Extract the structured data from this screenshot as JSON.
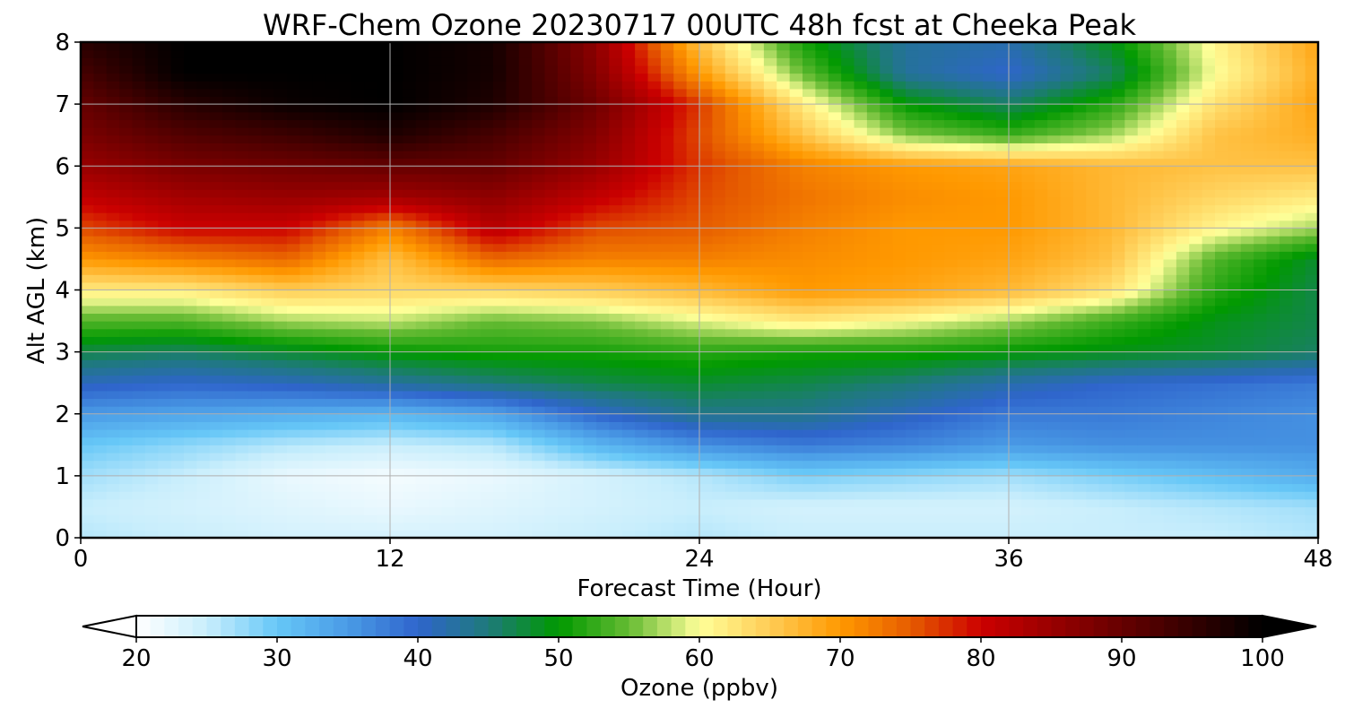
{
  "chart_data": {
    "type": "heatmap",
    "title": "WRF-Chem Ozone  20230717 00UTC 48h fcst at Cheeka Peak",
    "xlabel": "Forecast Time (Hour)",
    "ylabel": "Alt AGL (km)",
    "xlim": [
      0,
      48
    ],
    "ylim": [
      0,
      8
    ],
    "xticks": [
      0,
      12,
      24,
      36,
      48
    ],
    "yticks": [
      0,
      1,
      2,
      3,
      4,
      5,
      6,
      7,
      8
    ],
    "grid": true,
    "colorbar": {
      "label": "Ozone  (ppbv)",
      "min": 20,
      "max": 100,
      "ticks": [
        20,
        30,
        40,
        50,
        60,
        70,
        80,
        90,
        100
      ],
      "extend": "both",
      "colors": {
        "20": "#ffffff",
        "25": "#c9eefc",
        "30": "#66c7f7",
        "35": "#4a9be6",
        "40": "#2f65cc",
        "45": "#1e7a7a",
        "50": "#009900",
        "55": "#66bb33",
        "60": "#ffff99",
        "65": "#ffcc55",
        "70": "#ff9900",
        "75": "#e65c00",
        "80": "#cc0000",
        "90": "#660000",
        "100": "#000000"
      }
    },
    "x": [
      0,
      4,
      8,
      12,
      16,
      20,
      24,
      28,
      32,
      36,
      40,
      44,
      48
    ],
    "y": [
      0,
      0.5,
      1,
      1.5,
      2,
      2.5,
      3,
      3.5,
      4,
      4.5,
      5,
      5.5,
      6,
      6.5,
      7,
      7.5,
      8
    ],
    "z": [
      [
        26,
        25,
        24,
        24,
        24,
        25,
        26,
        25,
        25,
        25,
        25,
        25,
        26
      ],
      [
        25,
        24,
        23,
        22,
        23,
        24,
        25,
        24,
        24,
        24,
        25,
        26,
        27
      ],
      [
        27,
        25,
        22,
        21,
        22,
        24,
        26,
        29,
        28,
        27,
        29,
        31,
        33
      ],
      [
        30,
        28,
        26,
        25,
        26,
        32,
        36,
        38,
        37,
        35,
        36,
        36,
        36
      ],
      [
        35,
        34,
        33,
        32,
        34,
        40,
        44,
        44,
        41,
        38,
        38,
        37,
        36
      ],
      [
        41,
        40,
        41,
        43,
        45,
        47,
        48,
        47,
        45,
        42,
        40,
        39,
        38
      ],
      [
        47,
        46,
        48,
        50,
        51,
        51,
        52,
        51,
        51,
        50,
        49,
        48,
        46
      ],
      [
        54,
        54,
        57,
        58,
        55,
        56,
        59,
        62,
        60,
        57,
        53,
        49,
        47
      ],
      [
        62,
        62,
        65,
        64,
        64,
        65,
        67,
        70,
        69,
        67,
        63,
        52,
        47
      ],
      [
        70,
        72,
        74,
        66,
        74,
        72,
        72,
        71,
        70,
        69,
        66,
        54,
        48
      ],
      [
        76,
        80,
        80,
        72,
        82,
        76,
        75,
        72,
        70,
        70,
        67,
        61,
        57
      ],
      [
        81,
        84,
        85,
        84,
        86,
        81,
        76,
        73,
        71,
        70,
        67,
        64,
        62
      ],
      [
        85,
        88,
        89,
        90,
        90,
        85,
        77,
        72,
        70,
        69,
        67,
        66,
        66
      ],
      [
        88,
        92,
        94,
        97,
        93,
        87,
        76,
        66,
        56,
        53,
        57,
        66,
        68
      ],
      [
        90,
        96,
        99,
        100,
        97,
        89,
        77,
        62,
        50,
        46,
        52,
        63,
        69
      ],
      [
        93,
        100,
        100,
        100,
        98,
        87,
        70,
        55,
        43,
        40,
        46,
        60,
        68
      ],
      [
        96,
        100,
        100,
        100,
        98,
        86,
        66,
        51,
        43,
        42,
        49,
        61,
        69
      ]
    ]
  }
}
